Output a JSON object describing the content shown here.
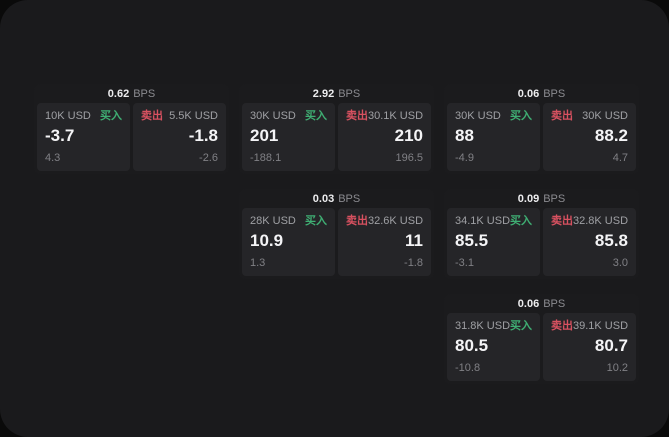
{
  "labels": {
    "bps_unit": "BPS",
    "buy": "买入",
    "sell": "卖出"
  },
  "colors": {
    "buy": "#3fae73",
    "sell": "#d85160",
    "panel_background": "#1a1a1c",
    "card_background": "#1b1b1d",
    "tile_background": "#252528"
  },
  "cards": [
    {
      "bps": "0.62",
      "buy": {
        "amount": "10K USD",
        "price": "-3.7",
        "sub": "4.3"
      },
      "sell": {
        "amount": "5.5K USD",
        "price": "-1.8",
        "sub": "-2.6"
      }
    },
    {
      "bps": "2.92",
      "buy": {
        "amount": "30K USD",
        "price": "201",
        "sub": "-188.1"
      },
      "sell": {
        "amount": "30.1K USD",
        "price": "210",
        "sub": "196.5"
      }
    },
    {
      "bps": "0.06",
      "buy": {
        "amount": "30K USD",
        "price": "88",
        "sub": "-4.9"
      },
      "sell": {
        "amount": "30K USD",
        "price": "88.2",
        "sub": "4.7"
      }
    },
    {
      "bps": "0.03",
      "buy": {
        "amount": "28K USD",
        "price": "10.9",
        "sub": "1.3"
      },
      "sell": {
        "amount": "32.6K USD",
        "price": "11",
        "sub": "-1.8"
      }
    },
    {
      "bps": "0.09",
      "buy": {
        "amount": "34.1K USD",
        "price": "85.5",
        "sub": "-3.1"
      },
      "sell": {
        "amount": "32.8K USD",
        "price": "85.8",
        "sub": "3.0"
      }
    },
    {
      "bps": "0.06",
      "buy": {
        "amount": "31.8K USD",
        "price": "80.5",
        "sub": "-10.8"
      },
      "sell": {
        "amount": "39.1K USD",
        "price": "80.7",
        "sub": "10.2"
      }
    }
  ]
}
